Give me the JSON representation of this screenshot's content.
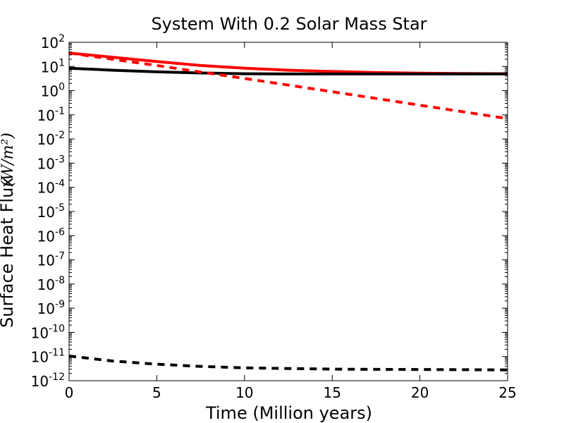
{
  "chart_data": {
    "type": "line",
    "title": "System With 0.2 Solar Mass Star",
    "xlabel": "Time  (Million years)",
    "ylabel_text": "Surface Heat Flux",
    "ylabel_unit": "(W/m²)",
    "xlim": [
      0,
      25
    ],
    "ylim_exponent": [
      -12,
      2
    ],
    "yscale": "log",
    "xticks": [
      0,
      5,
      10,
      15,
      20,
      25
    ],
    "yticks": [
      {
        "base": "10",
        "exp": "2"
      },
      {
        "base": "10",
        "exp": "1"
      },
      {
        "base": "10",
        "exp": "0"
      },
      {
        "base": "10",
        "exp": "-1"
      },
      {
        "base": "10",
        "exp": "-2"
      },
      {
        "base": "10",
        "exp": "-3"
      },
      {
        "base": "10",
        "exp": "-4"
      },
      {
        "base": "10",
        "exp": "-5"
      },
      {
        "base": "10",
        "exp": "-6"
      },
      {
        "base": "10",
        "exp": "-7"
      },
      {
        "base": "10",
        "exp": "-8"
      },
      {
        "base": "10",
        "exp": "-9"
      },
      {
        "base": "10",
        "exp": "-10"
      },
      {
        "base": "10",
        "exp": "-11"
      },
      {
        "base": "10",
        "exp": "-12"
      }
    ],
    "series": [
      {
        "name": "red-solid",
        "color": "#ff0000",
        "style": "solid",
        "x": [
          0,
          2.5,
          5,
          7.5,
          10,
          12.5,
          15,
          17.5,
          20,
          22.5,
          25
        ],
        "y": [
          36,
          24,
          16,
          11,
          8.5,
          7,
          6.2,
          5.6,
          5.3,
          5.1,
          5.0
        ]
      },
      {
        "name": "black-solid",
        "color": "#000000",
        "style": "solid",
        "x": [
          0,
          2.5,
          5,
          7.5,
          10,
          12.5,
          15,
          17.5,
          20,
          22.5,
          25
        ],
        "y": [
          8.5,
          7.0,
          6.0,
          5.4,
          5.0,
          4.9,
          4.9,
          4.9,
          4.9,
          4.9,
          4.9
        ]
      },
      {
        "name": "red-dashed",
        "color": "#ff0000",
        "style": "dashed",
        "x": [
          0,
          5,
          10,
          15,
          20,
          25
        ],
        "y": [
          36,
          11,
          3.2,
          0.9,
          0.25,
          0.07
        ]
      },
      {
        "name": "black-dashed",
        "color": "#000000",
        "style": "dashed",
        "x": [
          0,
          2.5,
          5,
          7.5,
          10,
          12.5,
          15,
          17.5,
          20,
          22.5,
          25
        ],
        "y": [
          1.05e-11,
          6.5e-12,
          4.8e-12,
          3.9e-12,
          3.4e-12,
          3.2e-12,
          3e-12,
          2.95e-12,
          2.9e-12,
          2.85e-12,
          2.8e-12
        ]
      }
    ]
  }
}
